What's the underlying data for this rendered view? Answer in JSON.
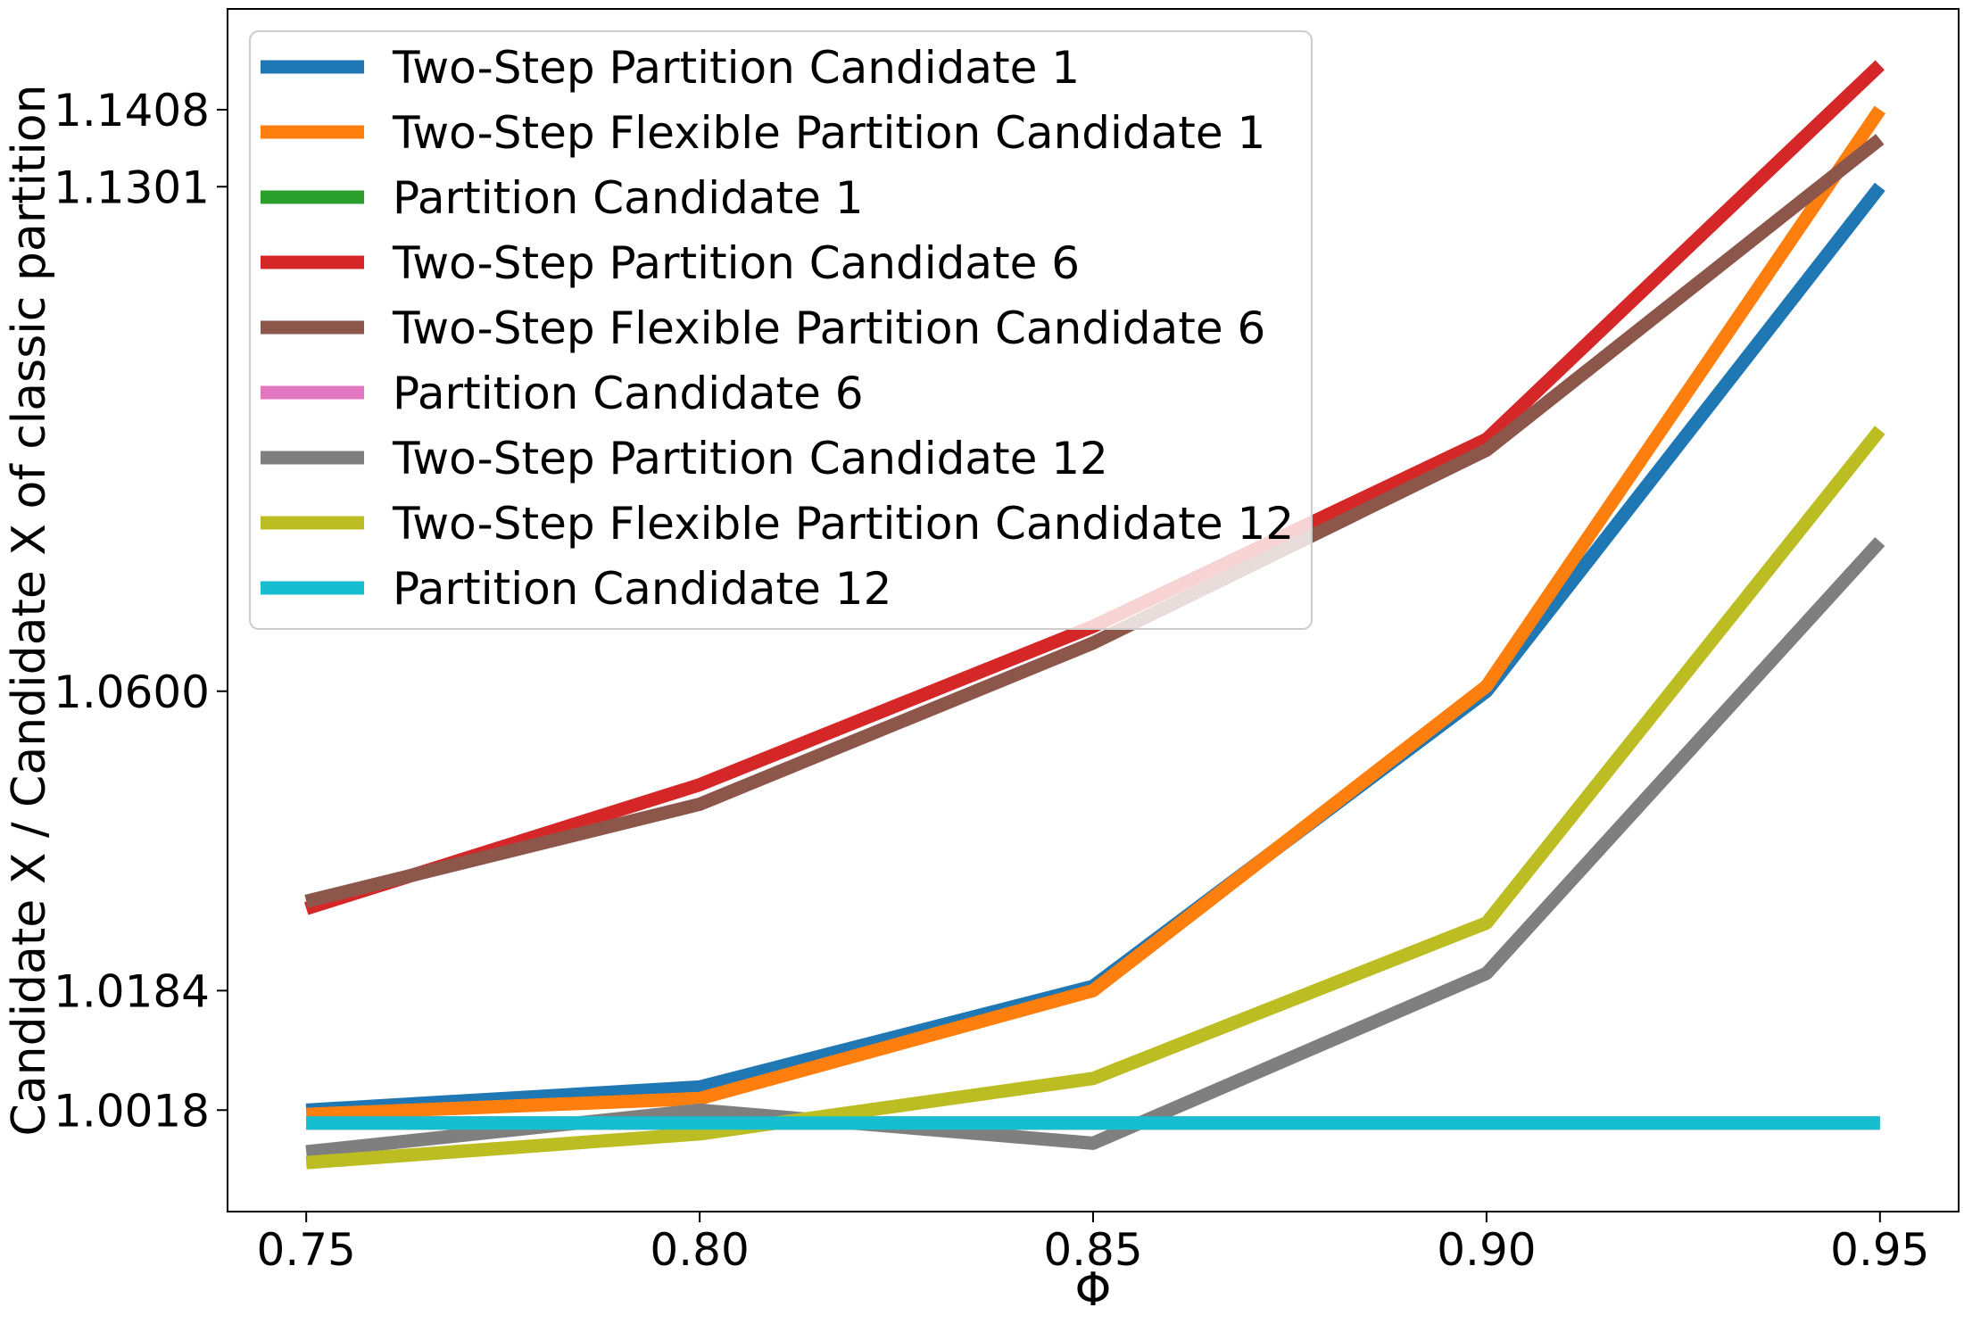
{
  "chart_data": {
    "type": "line",
    "xlabel": "Φ",
    "ylabel": "Candidate X / Candidate X of classic partition",
    "x": [
      0.75,
      0.8,
      0.85,
      0.9,
      0.95
    ],
    "x_tick_labels": [
      "0.75",
      "0.80",
      "0.85",
      "0.90",
      "0.95"
    ],
    "xlim": [
      0.74,
      0.96
    ],
    "y_ticks": [
      1.0018,
      1.0184,
      1.06,
      1.1301,
      1.1408
    ],
    "y_tick_labels": [
      "1.0018",
      "1.0184",
      "1.0600",
      "1.1301",
      "1.1408"
    ],
    "ylim": [
      0.9877,
      1.1548
    ],
    "grid": false,
    "legend_position": "top-left",
    "series": [
      {
        "name": "Two-Step Partition Candidate 1",
        "color": "#1f77b4",
        "values": [
          1.0018,
          1.005,
          1.019,
          1.06,
          1.1301
        ]
      },
      {
        "name": "Two-Step Flexible Partition Candidate 1",
        "color": "#ff7f0e",
        "values": [
          1.0012,
          1.0034,
          1.0184,
          1.0607,
          1.1408
        ]
      },
      {
        "name": "Partition Candidate 1",
        "color": "#2ca02c",
        "values": [
          1.0,
          1.0,
          1.0,
          1.0,
          1.0
        ]
      },
      {
        "name": "Two-Step Partition Candidate 6",
        "color": "#d62728",
        "values": [
          1.0298,
          1.047,
          1.069,
          1.095,
          1.147
        ]
      },
      {
        "name": "Two-Step Flexible Partition Candidate 6",
        "color": "#8c564b",
        "values": [
          1.0308,
          1.0443,
          1.0667,
          1.0935,
          1.1367
        ]
      },
      {
        "name": "Partition Candidate 6",
        "color": "#e377c2",
        "values": [
          1.0,
          1.0,
          1.0,
          1.0,
          1.0
        ]
      },
      {
        "name": "Two-Step Partition Candidate 12",
        "color": "#7f7f7f",
        "values": [
          0.996,
          1.0018,
          0.9972,
          1.0208,
          1.0808
        ]
      },
      {
        "name": "Two-Step Flexible Partition Candidate 12",
        "color": "#bcbd22",
        "values": [
          0.9945,
          0.9985,
          1.0062,
          1.0278,
          1.0963
        ]
      },
      {
        "name": "Partition Candidate 12",
        "color": "#17becf",
        "values": [
          1.0,
          1.0,
          1.0,
          1.0,
          1.0
        ]
      }
    ]
  }
}
